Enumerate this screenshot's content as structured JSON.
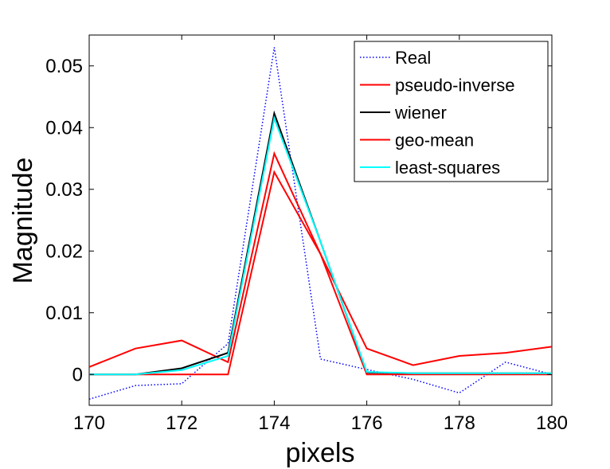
{
  "chart_data": {
    "type": "line",
    "xlabel": "pixels",
    "ylabel": "Magnitude",
    "xlim": [
      170,
      180
    ],
    "ylim": [
      -0.005,
      0.055
    ],
    "xticks": [
      170,
      172,
      174,
      176,
      178,
      180
    ],
    "xtick_labels": [
      "170",
      "172",
      "174",
      "176",
      "178",
      "180"
    ],
    "yticks": [
      0,
      0.01,
      0.02,
      0.03,
      0.04,
      0.05
    ],
    "ytick_labels": [
      "0",
      "0.01",
      "0.02",
      "0.03",
      "0.04",
      "0.05"
    ],
    "grid": false,
    "legend_position": "top-right",
    "x": [
      170,
      171,
      172,
      173,
      174,
      175,
      176,
      177,
      178,
      179,
      180
    ],
    "series": [
      {
        "name": "Real",
        "color": "#0000ff",
        "dash": "dotted",
        "values": [
          -0.004,
          -0.0018,
          -0.0015,
          0.005,
          0.053,
          0.0025,
          0.0008,
          -0.0008,
          -0.003,
          0.002,
          0.0
        ]
      },
      {
        "name": "pseudo-inverse",
        "color": "#ff0000",
        "dash": "solid",
        "values": [
          0.0012,
          0.0042,
          0.0055,
          0.002,
          0.0358,
          0.0195,
          0.0042,
          0.0015,
          0.003,
          0.0035,
          0.0045
        ]
      },
      {
        "name": "wiener",
        "color": "#000000",
        "dash": "solid",
        "values": [
          0.0,
          0.0,
          0.001,
          0.0035,
          0.0423,
          0.0215,
          0.0003,
          0.0002,
          0.0002,
          0.0002,
          0.0002
        ]
      },
      {
        "name": "geo-mean",
        "color": "#ff0000",
        "dash": "solid",
        "values": [
          0.0,
          0.0,
          0.0,
          0.0,
          0.0328,
          0.0195,
          0.0,
          0.0,
          0.0,
          0.0,
          0.0
        ]
      },
      {
        "name": "least-squares",
        "color": "#00ffff",
        "dash": "solid",
        "values": [
          0.0,
          0.0,
          0.0007,
          0.003,
          0.0415,
          0.0215,
          0.0004,
          0.0002,
          0.0002,
          0.0002,
          0.0002
        ]
      }
    ]
  }
}
